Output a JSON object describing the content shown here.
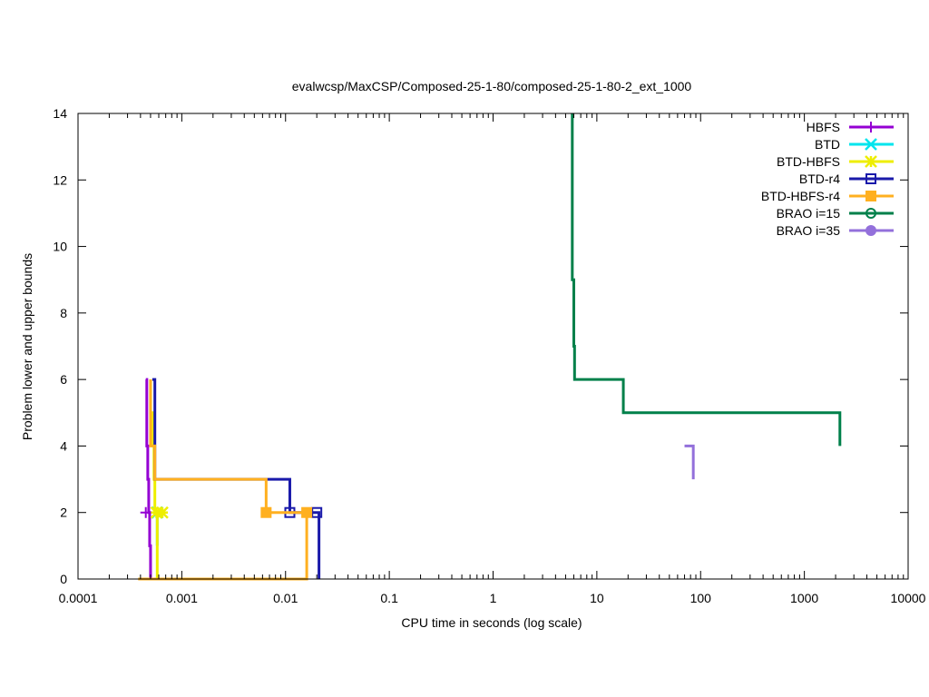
{
  "chart_data": {
    "type": "line",
    "title": "evalwcsp/MaxCSP/Composed-25-1-80/composed-25-1-80-2_ext_1000",
    "xlabel": "CPU time in seconds (log scale)",
    "ylabel": "Problem lower and upper bounds",
    "xscale": "log",
    "xlim": [
      0.0001,
      10000
    ],
    "ylim": [
      0,
      14
    ],
    "x_ticks": [
      0.0001,
      0.001,
      0.01,
      0.1,
      1,
      10,
      100,
      1000,
      10000
    ],
    "x_tick_labels": [
      "0.0001",
      "0.001",
      "0.01",
      "0.1",
      "1",
      "10",
      "100",
      "1000",
      "10000"
    ],
    "y_ticks": [
      0,
      2,
      4,
      6,
      8,
      10,
      12,
      14
    ],
    "y_tick_labels": [
      "0",
      "2",
      "4",
      "6",
      "8",
      "10",
      "12",
      "14"
    ],
    "grid": false,
    "legend_position": "top-right",
    "series": [
      {
        "name": "HBFS",
        "color": "#9400d3",
        "marker": "plus",
        "points": [
          [
            0.00045,
            6
          ],
          [
            0.00046,
            6
          ],
          [
            0.00046,
            4
          ],
          [
            0.00047,
            4
          ],
          [
            0.00047,
            3
          ],
          [
            0.00048,
            3
          ],
          [
            0.00048,
            2
          ],
          [
            0.00049,
            2
          ],
          [
            0.00049,
            1
          ],
          [
            0.0005,
            1
          ],
          [
            0.0005,
            0
          ]
        ],
        "marker_points": [
          [
            0.00045,
            2
          ]
        ]
      },
      {
        "name": "BTD",
        "color": "#00e5ee",
        "marker": "x",
        "points": [
          [
            0.00057,
            2
          ],
          [
            0.00058,
            2
          ],
          [
            0.00058,
            1
          ]
        ],
        "marker_points": [
          [
            0.00058,
            2
          ]
        ]
      },
      {
        "name": "BTD-HBFS",
        "color": "#eeee00",
        "marker": "star",
        "points": [
          [
            0.0005,
            6
          ],
          [
            0.0005,
            5
          ],
          [
            0.00052,
            5
          ],
          [
            0.00052,
            4
          ],
          [
            0.00054,
            4
          ],
          [
            0.00054,
            3
          ],
          [
            0.00055,
            3
          ],
          [
            0.00055,
            2
          ],
          [
            0.0006,
            2
          ],
          [
            0.00058,
            2
          ],
          [
            0.00058,
            0
          ]
        ],
        "marker_points": [
          [
            0.00057,
            2
          ],
          [
            0.00065,
            2
          ]
        ]
      },
      {
        "name": "BTD-r4",
        "color": "#1a1aaa",
        "marker": "open-square",
        "points": [
          [
            0.00052,
            6
          ],
          [
            0.00055,
            6
          ],
          [
            0.00055,
            3
          ],
          [
            0.011,
            3
          ],
          [
            0.011,
            2
          ],
          [
            0.021,
            2
          ],
          [
            0.021,
            0
          ]
        ],
        "marker_points": [
          [
            0.011,
            2
          ],
          [
            0.02,
            2
          ]
        ]
      },
      {
        "name": "BTD-HBFS-r4",
        "color": "#ffb020",
        "marker": "filled-square",
        "points": [
          [
            0.0005,
            6
          ],
          [
            0.0005,
            4
          ],
          [
            0.00055,
            4
          ],
          [
            0.00055,
            3
          ],
          [
            0.0065,
            3
          ],
          [
            0.0065,
            2
          ],
          [
            0.016,
            2
          ],
          [
            0.016,
            0
          ],
          [
            0.00038,
            0
          ]
        ],
        "marker_points": [
          [
            0.0065,
            2
          ],
          [
            0.016,
            2
          ]
        ]
      },
      {
        "name": "BRAO i=15",
        "color": "#00804a",
        "marker": "open-circle",
        "points": [
          [
            5.8,
            14
          ],
          [
            5.8,
            9
          ],
          [
            6.0,
            9
          ],
          [
            6.0,
            7
          ],
          [
            6.1,
            7
          ],
          [
            6.1,
            6
          ],
          [
            18,
            6
          ],
          [
            18,
            5
          ],
          [
            2200,
            5
          ],
          [
            2200,
            4
          ]
        ],
        "marker_points": []
      },
      {
        "name": "BRAO i=35",
        "color": "#9370db",
        "marker": "filled-circle",
        "points": [
          [
            70,
            4
          ],
          [
            85,
            4
          ],
          [
            85,
            3
          ]
        ],
        "marker_points": []
      }
    ]
  }
}
